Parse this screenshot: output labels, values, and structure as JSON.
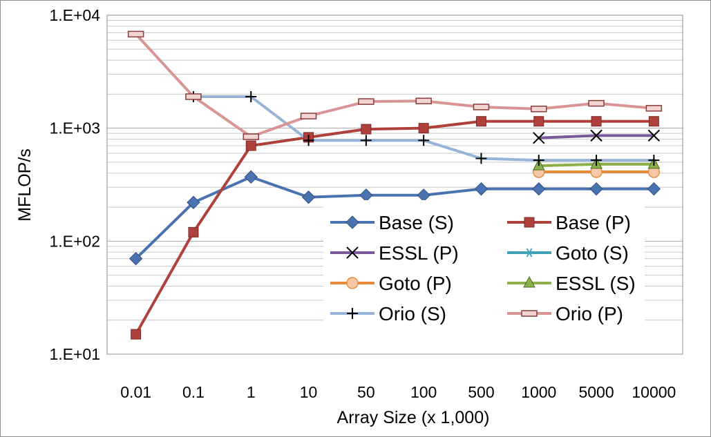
{
  "chart_data": {
    "type": "line",
    "xlabel": "Array Size (x 1,000)",
    "ylabel": "MFLOP/s",
    "yscale": "log",
    "ylim": [
      10,
      10000
    ],
    "yticks": [
      "1.E+01",
      "1.E+02",
      "1.E+03",
      "1.E+04"
    ],
    "categories": [
      "0.01",
      "0.1",
      "1",
      "10",
      "50",
      "100",
      "500",
      "1000",
      "5000",
      "10000"
    ],
    "grid": true,
    "legend_position": "bottom-right inside plot",
    "series": [
      {
        "name": "Base (S)",
        "color": "#4a72b0",
        "marker": "diamond",
        "values": [
          70,
          220,
          370,
          245,
          255,
          255,
          290,
          290,
          290,
          290
        ]
      },
      {
        "name": "Base (P)",
        "color": "#b0403c",
        "marker": "square",
        "values": [
          15,
          120,
          700,
          830,
          980,
          1000,
          1150,
          1150,
          1150,
          1150
        ]
      },
      {
        "name": "ESSL (P)",
        "color": "#7a5a9a",
        "marker": "x",
        "values": [
          null,
          null,
          null,
          null,
          null,
          null,
          null,
          820,
          860,
          860
        ]
      },
      {
        "name": "Goto (S)",
        "color": "#3fa3b5",
        "marker": "asterisk",
        "values": [
          null,
          null,
          null,
          null,
          null,
          null,
          null,
          410,
          410,
          410
        ]
      },
      {
        "name": "Goto (P)",
        "color": "#e98a3a",
        "marker": "circle",
        "values": [
          null,
          null,
          null,
          null,
          null,
          null,
          null,
          410,
          410,
          410
        ]
      },
      {
        "name": "ESSL (S)",
        "color": "#8db04a",
        "marker": "triangle",
        "values": [
          null,
          null,
          null,
          null,
          null,
          null,
          null,
          465,
          480,
          480
        ]
      },
      {
        "name": "Orio (S)",
        "color": "#97b3d8",
        "marker": "plus",
        "values": [
          null,
          1900,
          1900,
          780,
          780,
          780,
          540,
          520,
          520,
          520
        ]
      },
      {
        "name": "Orio (P)",
        "color": "#d99594",
        "marker": "dash",
        "values": [
          6800,
          1900,
          840,
          1280,
          1720,
          1740,
          1540,
          1480,
          1660,
          1500
        ]
      }
    ]
  }
}
